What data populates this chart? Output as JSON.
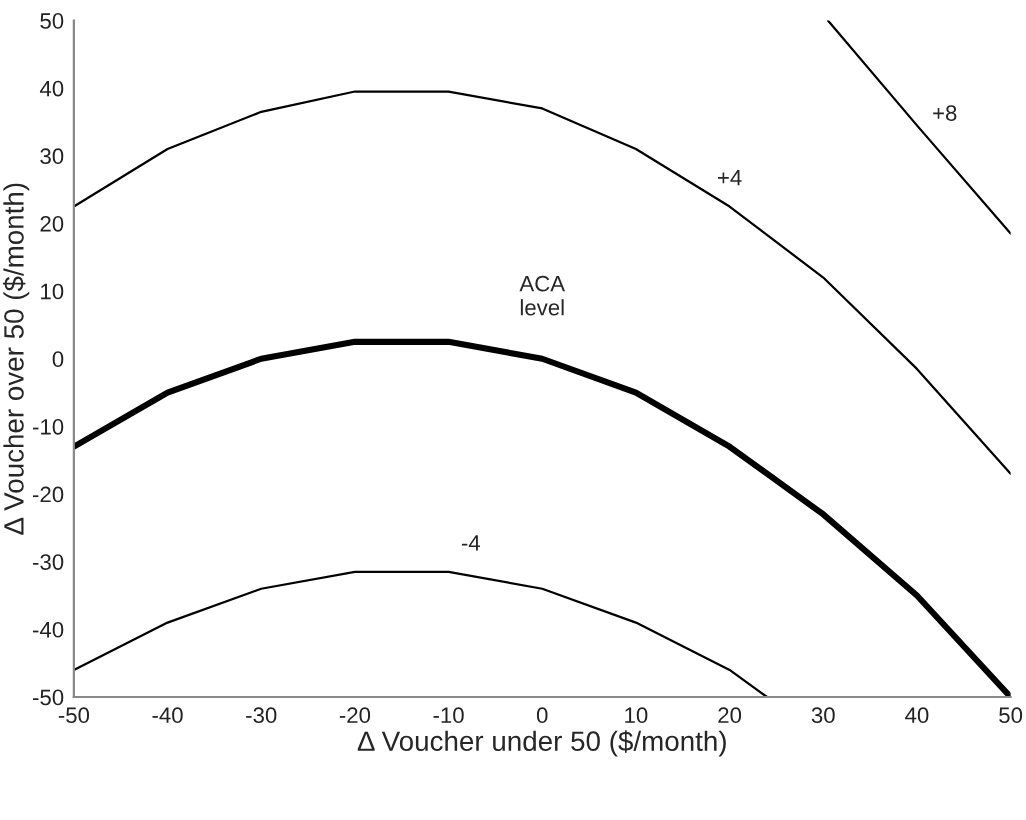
{
  "chart_data": {
    "type": "line",
    "xlabel": "Δ Voucher under 50 ($/month)",
    "ylabel": "Δ Voucher over 50 ($/month)",
    "xlim": [
      -50,
      50
    ],
    "ylim": [
      -50,
      50
    ],
    "xticks": [
      -50,
      -40,
      -30,
      -20,
      -10,
      0,
      10,
      20,
      30,
      40,
      50
    ],
    "yticks": [
      -50,
      -40,
      -30,
      -20,
      -10,
      0,
      10,
      20,
      30,
      40,
      50
    ],
    "grid": false,
    "legend": false,
    "series": [
      {
        "name": "+4",
        "color": "#000000",
        "x": [
          -50,
          -40,
          -30,
          -20,
          -10,
          0,
          10,
          20,
          30,
          40,
          50
        ],
        "values": [
          22.5,
          31,
          36.5,
          39.5,
          39.5,
          37,
          31,
          22.5,
          12,
          -1.5,
          -17
        ]
      },
      {
        "name": "+8",
        "color": "#000000",
        "x": [
          30.5,
          40,
          50
        ],
        "values": [
          50,
          34.5,
          18.5
        ]
      },
      {
        "name": "ACA\nlevel",
        "color": "#000000",
        "x": [
          -50,
          -40,
          -30,
          -20,
          -10,
          0,
          10,
          20,
          30,
          40,
          50
        ],
        "values": [
          -13,
          -5,
          0,
          2.5,
          2.5,
          0,
          -5,
          -13,
          -23,
          -35,
          -50
        ]
      },
      {
        "name": "-4",
        "color": "#000000",
        "x": [
          -50,
          -40,
          -30,
          -20,
          -10,
          0,
          10,
          20,
          24
        ],
        "values": [
          -46,
          -39,
          -34,
          -31.5,
          -31.5,
          -34,
          -39,
          -46,
          -50
        ]
      }
    ]
  }
}
